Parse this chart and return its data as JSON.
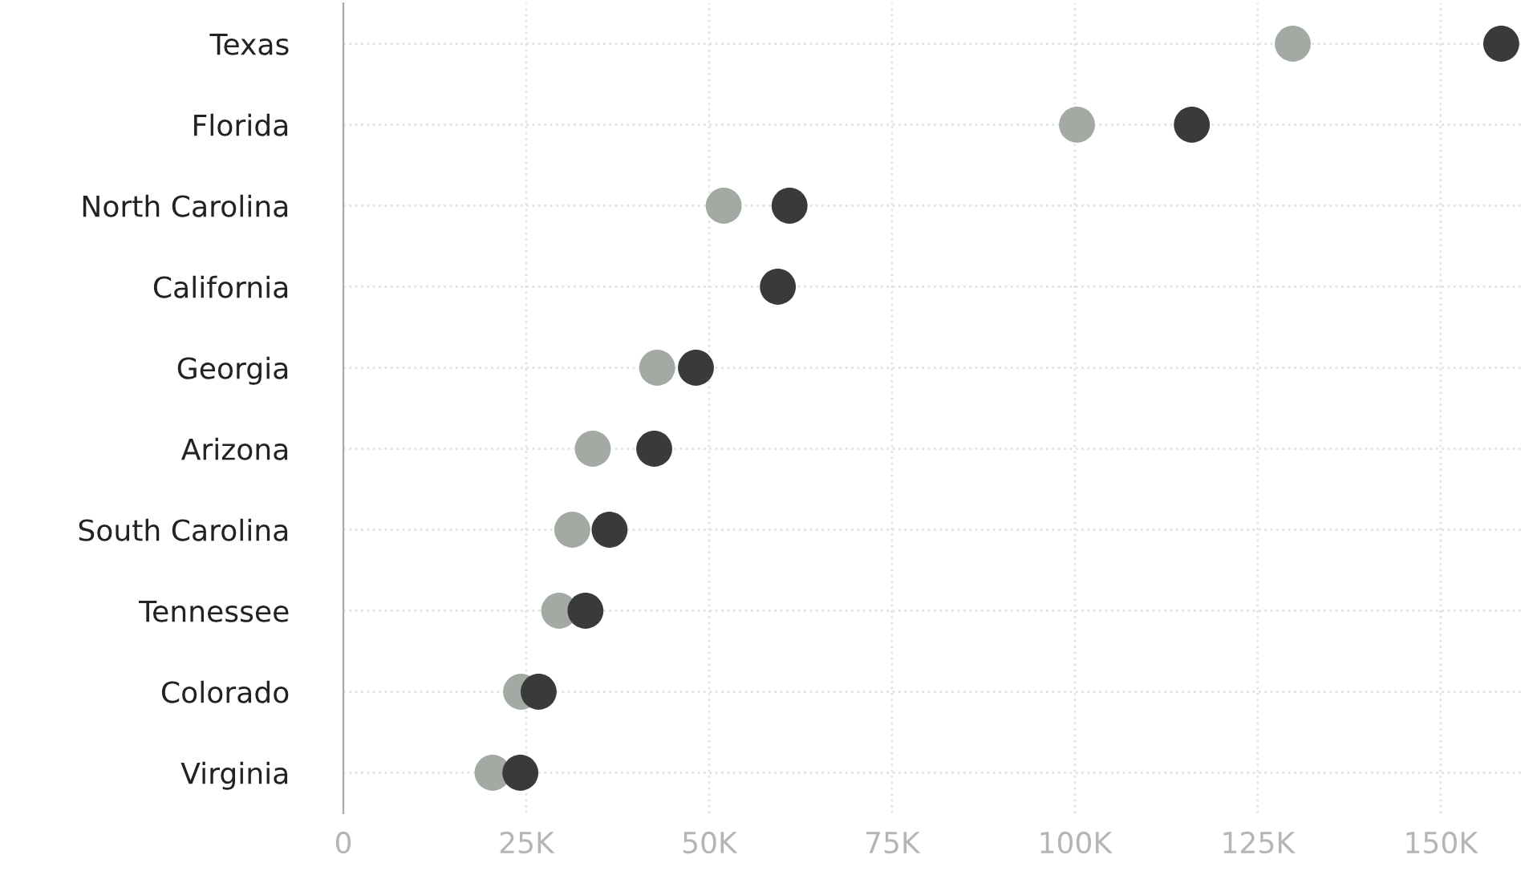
{
  "chart_data": {
    "type": "scatter",
    "orientation": "horizontal",
    "categories": [
      "Texas",
      "Florida",
      "North Carolina",
      "California",
      "Georgia",
      "Arizona",
      "South Carolina",
      "Tennessee",
      "Colorado",
      "Virginia"
    ],
    "series": [
      {
        "color": "#a3aaa3",
        "values": [
          129.8,
          100.3,
          52,
          null,
          42.9,
          34.1,
          31.3,
          29.5,
          24.3,
          20.4
        ]
      },
      {
        "color": "#3a3a3a",
        "values": [
          158.3,
          116,
          61,
          59.4,
          48.2,
          42.5,
          36.4,
          33.1,
          26.7,
          24.2
        ]
      }
    ],
    "xlim": [
      0,
      161
    ],
    "xticks": [
      {
        "value": 0,
        "label": "0"
      },
      {
        "value": 25,
        "label": "25K"
      },
      {
        "value": 50,
        "label": "50K"
      },
      {
        "value": 75,
        "label": "75K"
      },
      {
        "value": 100,
        "label": "100K"
      },
      {
        "value": 125,
        "label": "125K"
      },
      {
        "value": 150,
        "label": "150K"
      }
    ],
    "grid": true
  }
}
